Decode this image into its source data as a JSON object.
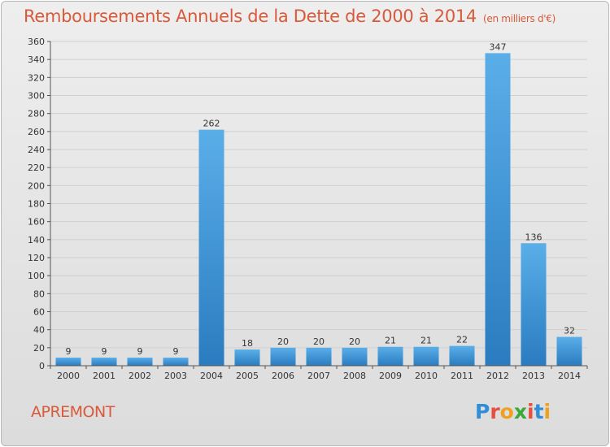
{
  "header": {
    "title": "Remboursements Annuels de la Dette de 2000 à 2014",
    "unit": "(en milliers d'€)"
  },
  "footer": {
    "city": "APREMONT",
    "logo": {
      "letters": [
        "P",
        "r",
        "o",
        "x",
        "i",
        "t",
        "i"
      ],
      "colors": [
        "#2f8ed8",
        "#e84e3c",
        "#f0a020",
        "#3aa93a",
        "#e84e3c",
        "#2f8ed8",
        "#f0a020"
      ]
    }
  },
  "colors": {
    "title": "#d85a3a",
    "bar_light": "#5aaee8",
    "bar_dark": "#2a7cc0",
    "grid": "#cfcfcf"
  },
  "chart_data": {
    "type": "bar",
    "title": "Remboursements Annuels de la Dette de 2000 à 2014",
    "xlabel": "",
    "ylabel": "",
    "categories": [
      "2000",
      "2001",
      "2002",
      "2003",
      "2004",
      "2005",
      "2006",
      "2007",
      "2008",
      "2009",
      "2010",
      "2011",
      "2012",
      "2013",
      "2014"
    ],
    "values": [
      9,
      9,
      9,
      9,
      262,
      18,
      20,
      20,
      20,
      21,
      21,
      22,
      347,
      136,
      32
    ],
    "ylim": [
      0,
      360
    ],
    "yticks": [
      0,
      20,
      40,
      60,
      80,
      100,
      120,
      140,
      160,
      180,
      200,
      220,
      240,
      260,
      280,
      300,
      320,
      340,
      360
    ],
    "grid": true,
    "legend": "none"
  }
}
